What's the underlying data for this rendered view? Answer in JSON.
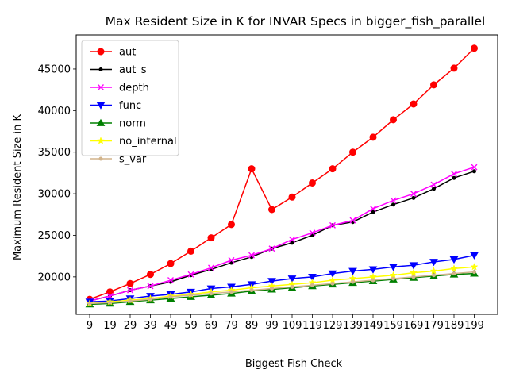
{
  "chart_data": {
    "type": "line",
    "title": "Max Resident Size in K for INVAR Specs in bigger_fish_parallel",
    "xlabel": "Biggest Fish Check",
    "ylabel": "Maximum Resident Size in K",
    "categories": [
      "9",
      "19",
      "29",
      "39",
      "49",
      "59",
      "69",
      "79",
      "89",
      "99",
      "109",
      "119",
      "129",
      "139",
      "149",
      "159",
      "169",
      "179",
      "189",
      "199"
    ],
    "ylim": [
      15500,
      49100
    ],
    "yticks": [
      20000,
      25000,
      30000,
      35000,
      40000,
      45000
    ],
    "grid": false,
    "legend_position": "top-left",
    "series": [
      {
        "name": "aut",
        "color": "#ff0000",
        "marker": "circle",
        "values": [
          17300,
          18200,
          19200,
          20300,
          21600,
          23100,
          24700,
          26300,
          33000,
          28100,
          29600,
          31300,
          33000,
          35000,
          36800,
          38900,
          40800,
          43100,
          45100,
          47500
        ]
      },
      {
        "name": "aut_s",
        "color": "#000000",
        "marker": "dot",
        "values": [
          17100,
          17700,
          18400,
          18900,
          19400,
          20200,
          20900,
          21700,
          22400,
          23400,
          24100,
          25000,
          26200,
          26600,
          27800,
          28700,
          29500,
          30600,
          31900,
          32700
        ]
      },
      {
        "name": "depth",
        "color": "#ff00ff",
        "marker": "x",
        "values": [
          17100,
          17700,
          18400,
          18900,
          19600,
          20300,
          21100,
          22000,
          22600,
          23400,
          24500,
          25300,
          26200,
          26800,
          28200,
          29200,
          30000,
          31100,
          32400,
          33200
        ]
      },
      {
        "name": "func",
        "color": "#0000ff",
        "marker": "triangle-down",
        "values": [
          17000,
          17100,
          17400,
          17700,
          17900,
          18200,
          18600,
          18800,
          19100,
          19500,
          19800,
          20000,
          20400,
          20700,
          20900,
          21200,
          21400,
          21800,
          22100,
          22600
        ]
      },
      {
        "name": "norm",
        "color": "#008000",
        "marker": "triangle-up",
        "values": [
          16700,
          16800,
          17000,
          17200,
          17400,
          17600,
          17800,
          18000,
          18300,
          18500,
          18700,
          18900,
          19100,
          19300,
          19500,
          19700,
          19900,
          20100,
          20300,
          20400
        ]
      },
      {
        "name": "no_internal",
        "color": "#ffff00",
        "marker": "star",
        "values": [
          16800,
          17000,
          17200,
          17400,
          17700,
          17900,
          18200,
          18400,
          18700,
          18900,
          19100,
          19300,
          19600,
          19800,
          20000,
          20200,
          20500,
          20700,
          21000,
          21200
        ]
      },
      {
        "name": "s_var",
        "color": "#d2b48c",
        "marker": "small-circle",
        "values": [
          16800,
          16900,
          17100,
          17300,
          17600,
          17800,
          18000,
          18200,
          18400,
          18600,
          18800,
          19000,
          19200,
          19400,
          19600,
          19800,
          20000,
          20200,
          20400,
          20600
        ]
      }
    ]
  }
}
